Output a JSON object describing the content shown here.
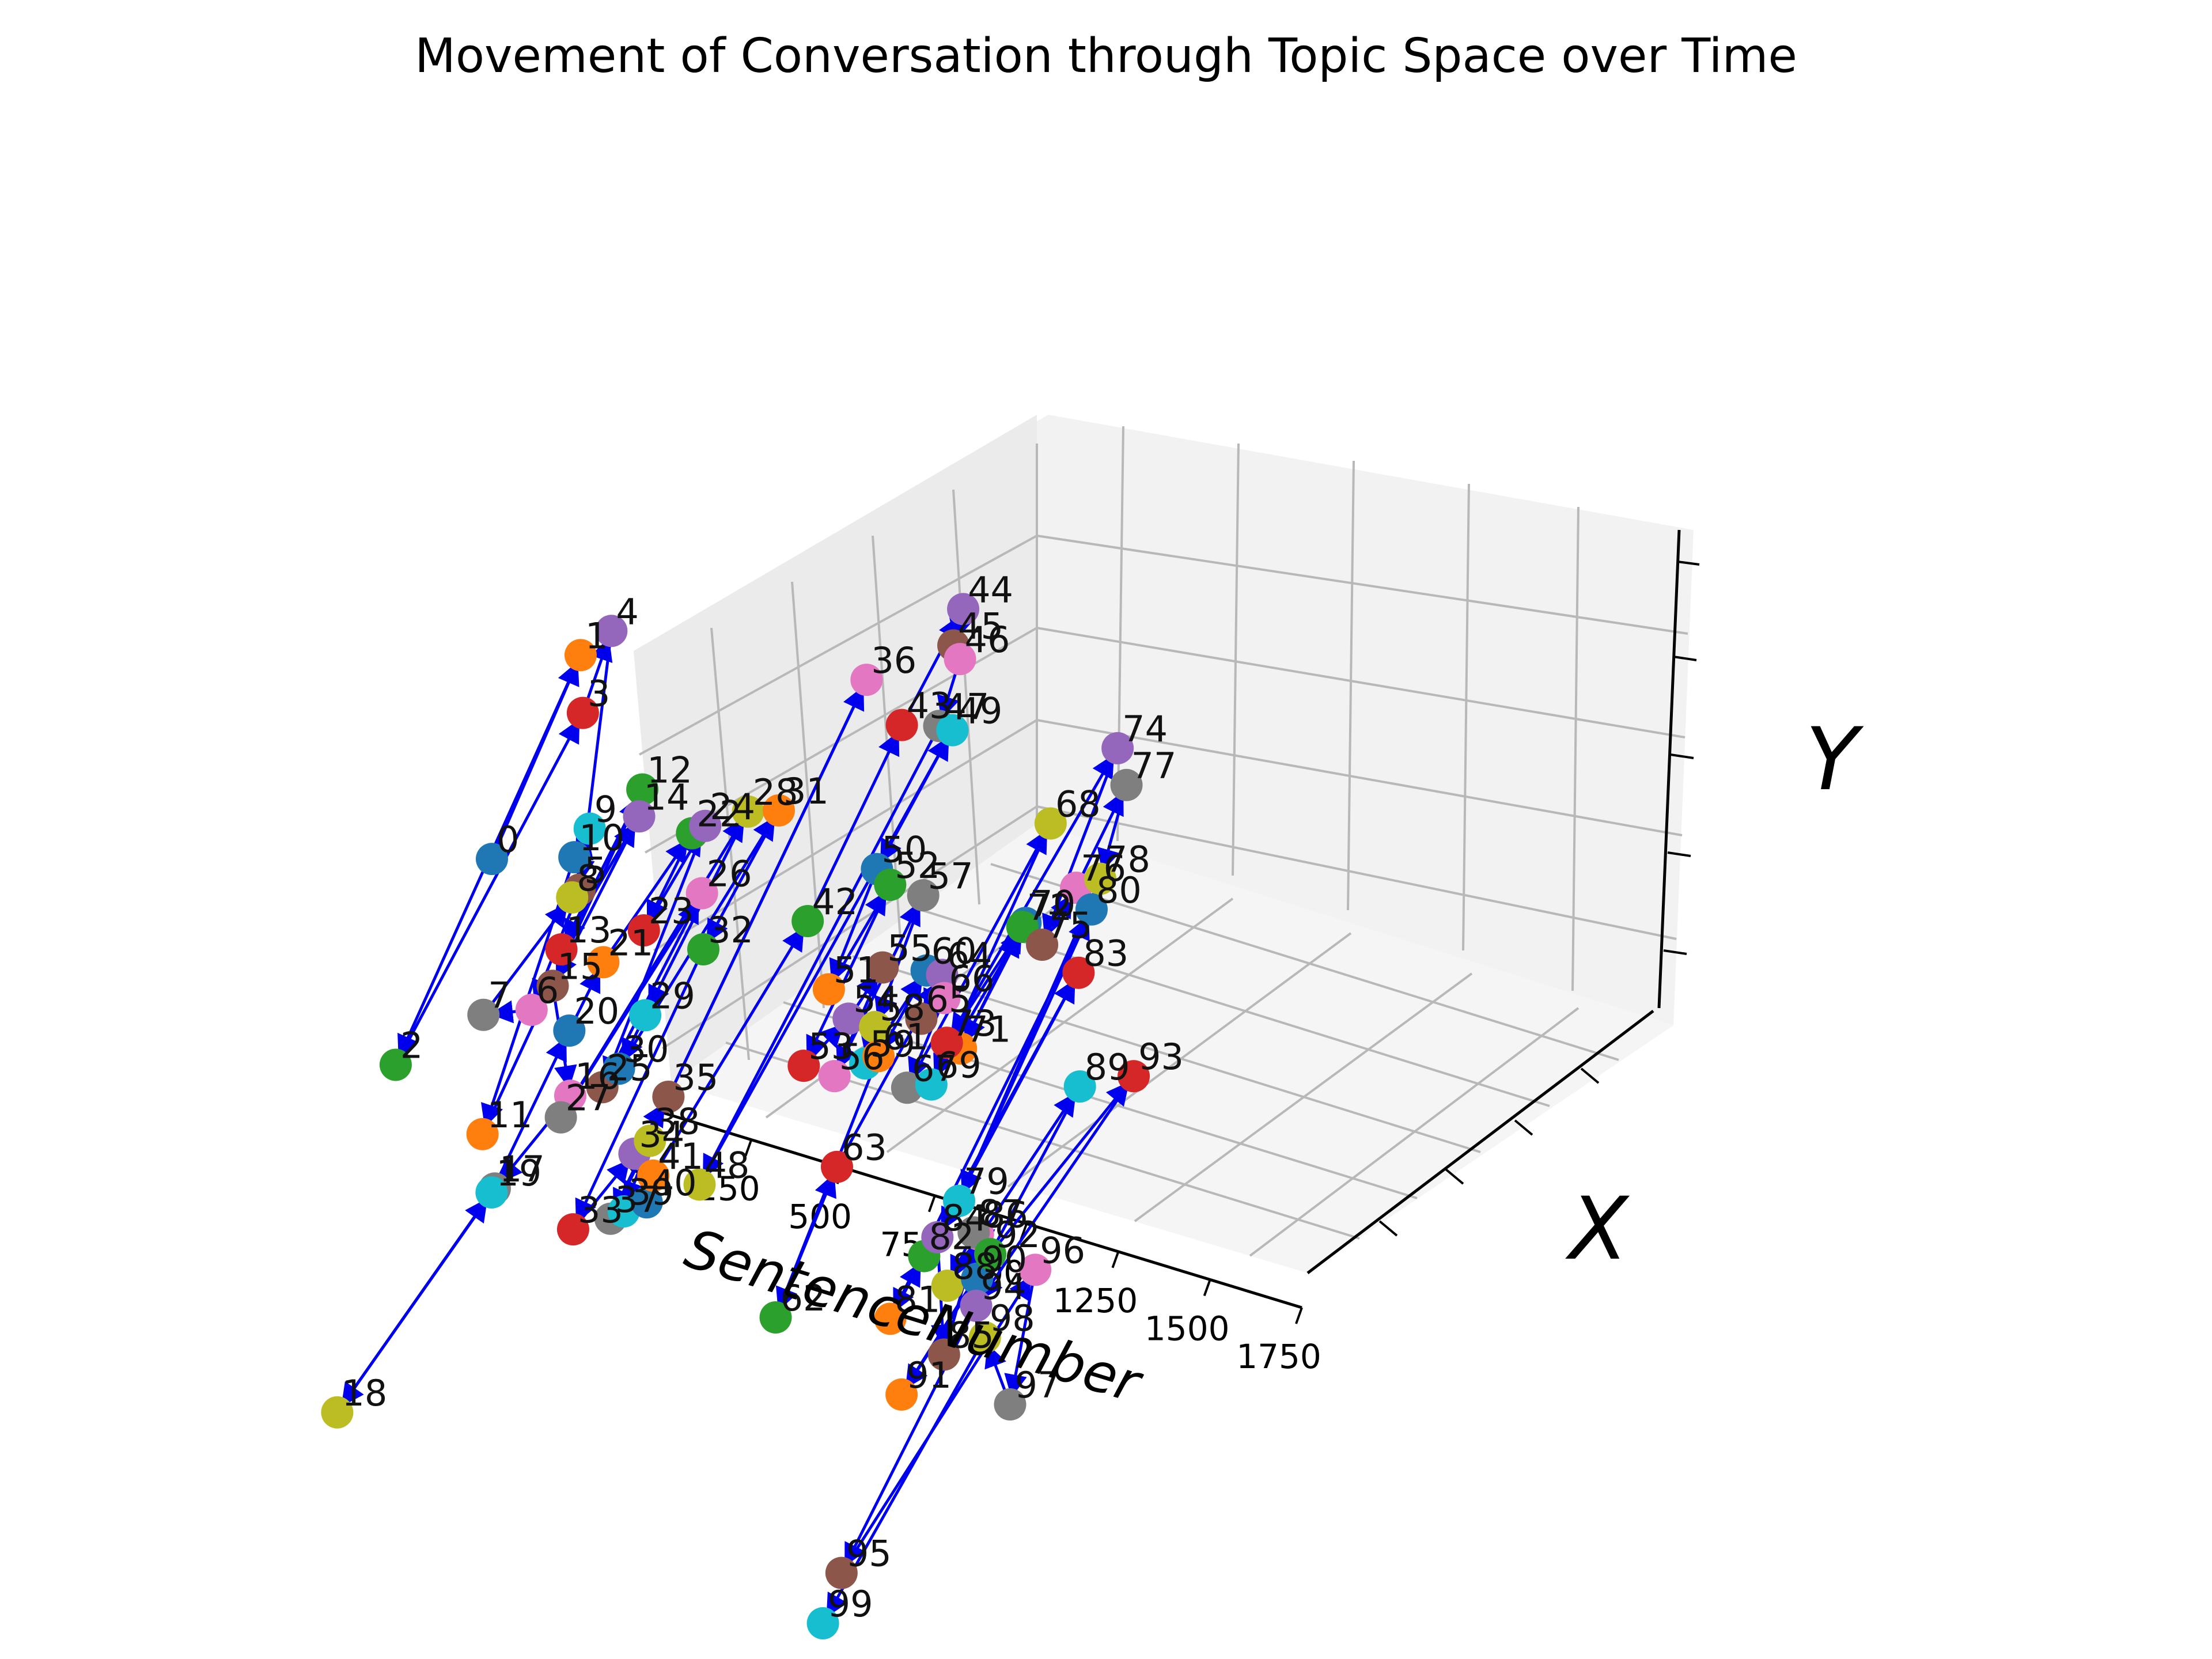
{
  "chart_data": {
    "type": "scatter",
    "title": "Movement of Conversation through Topic Space over Time",
    "xlabel": "SentenceNumber",
    "ylabel": "X",
    "zlabel": "Y",
    "x_ticks": [
      "0",
      "250",
      "500",
      "750",
      "1000",
      "1250",
      "1500",
      "1750"
    ],
    "xlim": [
      0,
      1750
    ],
    "grid": true,
    "connected_sequence": true,
    "arrow_color": "#0000ee",
    "point_colors": [
      "#1f77b4",
      "#ff7f0e",
      "#2ca02c",
      "#d62728",
      "#9467bd",
      "#8c564b",
      "#e377c2",
      "#7f7f7f",
      "#bcbd22",
      "#17becf"
    ],
    "points": [
      {
        "label": "0",
        "x": 18,
        "y": 0.35,
        "z": 0.62
      },
      {
        "label": "1",
        "x": 36,
        "y": 0.2,
        "z": 0.88
      },
      {
        "label": "2",
        "x": 54,
        "y": 0.55,
        "z": 0.4
      },
      {
        "label": "3",
        "x": 72,
        "y": 0.22,
        "z": 0.8
      },
      {
        "label": "4",
        "x": 90,
        "y": 0.18,
        "z": 0.92
      },
      {
        "label": "5",
        "x": 108,
        "y": 0.25,
        "z": 0.52
      },
      {
        "label": "6",
        "x": 126,
        "y": 0.35,
        "z": 0.38
      },
      {
        "label": "7",
        "x": 144,
        "y": 0.45,
        "z": 0.44
      },
      {
        "label": "8",
        "x": 162,
        "y": 0.3,
        "z": 0.55
      },
      {
        "label": "9",
        "x": 180,
        "y": 0.28,
        "z": 0.66
      },
      {
        "label": "10",
        "x": 198,
        "y": 0.32,
        "z": 0.64
      },
      {
        "label": "11",
        "x": 216,
        "y": 0.5,
        "z": 0.28
      },
      {
        "label": "12",
        "x": 234,
        "y": 0.22,
        "z": 0.7
      },
      {
        "label": "13",
        "x": 252,
        "y": 0.38,
        "z": 0.53
      },
      {
        "label": "14",
        "x": 270,
        "y": 0.25,
        "z": 0.68
      },
      {
        "label": "15",
        "x": 288,
        "y": 0.42,
        "z": 0.5
      },
      {
        "label": "16",
        "x": 306,
        "y": 0.4,
        "z": 0.3
      },
      {
        "label": "17",
        "x": 324,
        "y": 0.55,
        "z": 0.24
      },
      {
        "label": "18",
        "x": 342,
        "y": 0.85,
        "z": 0.05
      },
      {
        "label": "19",
        "x": 360,
        "y": 0.58,
        "z": 0.26
      },
      {
        "label": "20",
        "x": 378,
        "y": 0.45,
        "z": 0.46
      },
      {
        "label": "21",
        "x": 396,
        "y": 0.4,
        "z": 0.55
      },
      {
        "label": "22",
        "x": 414,
        "y": 0.25,
        "z": 0.68
      },
      {
        "label": "23",
        "x": 432,
        "y": 0.35,
        "z": 0.58
      },
      {
        "label": "24",
        "x": 450,
        "y": 0.25,
        "z": 0.7
      },
      {
        "label": "25",
        "x": 468,
        "y": 0.45,
        "z": 0.38
      },
      {
        "label": "26",
        "x": 486,
        "y": 0.28,
        "z": 0.61
      },
      {
        "label": "27",
        "x": 504,
        "y": 0.55,
        "z": 0.4
      },
      {
        "label": "28",
        "x": 522,
        "y": 0.22,
        "z": 0.72
      },
      {
        "label": "29",
        "x": 540,
        "y": 0.42,
        "z": 0.5
      },
      {
        "label": "30",
        "x": 558,
        "y": 0.48,
        "z": 0.45
      },
      {
        "label": "31",
        "x": 576,
        "y": 0.2,
        "z": 0.72
      },
      {
        "label": "32",
        "x": 594,
        "y": 0.35,
        "z": 0.58
      },
      {
        "label": "33",
        "x": 612,
        "y": 0.6,
        "z": 0.26
      },
      {
        "label": "34",
        "x": 630,
        "y": 0.5,
        "z": 0.33
      },
      {
        "label": "35",
        "x": 648,
        "y": 0.45,
        "z": 0.4
      },
      {
        "label": "36",
        "x": 666,
        "y": 0.1,
        "z": 0.9
      },
      {
        "label": "37",
        "x": 684,
        "y": 0.58,
        "z": 0.28
      },
      {
        "label": "38",
        "x": 702,
        "y": 0.52,
        "z": 0.38
      },
      {
        "label": "39",
        "x": 720,
        "y": 0.58,
        "z": 0.3
      },
      {
        "label": "40",
        "x": 738,
        "y": 0.55,
        "z": 0.3
      },
      {
        "label": "41",
        "x": 756,
        "y": 0.55,
        "z": 0.35
      },
      {
        "label": "42",
        "x": 774,
        "y": 0.28,
        "z": 0.62
      },
      {
        "label": "43",
        "x": 792,
        "y": 0.12,
        "z": 0.86
      },
      {
        "label": "44",
        "x": 810,
        "y": 0.02,
        "z": 1.0
      },
      {
        "label": "45",
        "x": 828,
        "y": 0.05,
        "z": 0.96
      },
      {
        "label": "46",
        "x": 846,
        "y": 0.05,
        "z": 0.94
      },
      {
        "label": "47",
        "x": 864,
        "y": 0.1,
        "z": 0.86
      },
      {
        "label": "48",
        "x": 882,
        "y": 0.55,
        "z": 0.36
      },
      {
        "label": "49",
        "x": 900,
        "y": 0.1,
        "z": 0.86
      },
      {
        "label": "50",
        "x": 918,
        "y": 0.25,
        "z": 0.72
      },
      {
        "label": "51",
        "x": 936,
        "y": 0.35,
        "z": 0.58
      },
      {
        "label": "52",
        "x": 954,
        "y": 0.25,
        "z": 0.7
      },
      {
        "label": "53",
        "x": 972,
        "y": 0.42,
        "z": 0.5
      },
      {
        "label": "54",
        "x": 990,
        "y": 0.35,
        "z": 0.54
      },
      {
        "label": "55",
        "x": 1008,
        "y": 0.3,
        "z": 0.6
      },
      {
        "label": "56",
        "x": 1026,
        "y": 0.4,
        "z": 0.48
      },
      {
        "label": "57",
        "x": 1044,
        "y": 0.25,
        "z": 0.7
      },
      {
        "label": "58",
        "x": 1062,
        "y": 0.35,
        "z": 0.54
      },
      {
        "label": "59",
        "x": 1080,
        "y": 0.38,
        "z": 0.5
      },
      {
        "label": "60",
        "x": 1098,
        "y": 0.28,
        "z": 0.6
      },
      {
        "label": "61",
        "x": 1116,
        "y": 0.38,
        "z": 0.52
      },
      {
        "label": "62",
        "x": 1134,
        "y": 0.58,
        "z": 0.2
      },
      {
        "label": "63",
        "x": 1152,
        "y": 0.48,
        "z": 0.4
      },
      {
        "label": "64",
        "x": 1170,
        "y": 0.3,
        "z": 0.62
      },
      {
        "label": "65",
        "x": 1188,
        "y": 0.35,
        "z": 0.58
      },
      {
        "label": "66",
        "x": 1206,
        "y": 0.32,
        "z": 0.6
      },
      {
        "label": "67",
        "x": 1224,
        "y": 0.4,
        "z": 0.5
      },
      {
        "label": "68",
        "x": 1242,
        "y": 0.15,
        "z": 0.8
      },
      {
        "label": "69",
        "x": 1260,
        "y": 0.38,
        "z": 0.5
      },
      {
        "label": "70",
        "x": 1278,
        "y": 0.22,
        "z": 0.68
      },
      {
        "label": "71",
        "x": 1296,
        "y": 0.35,
        "z": 0.55
      },
      {
        "label": "72",
        "x": 1314,
        "y": 0.25,
        "z": 0.7
      },
      {
        "label": "73",
        "x": 1332,
        "y": 0.4,
        "z": 0.6
      },
      {
        "label": "74",
        "x": 1350,
        "y": 0.1,
        "z": 0.92
      },
      {
        "label": "75",
        "x": 1368,
        "y": 0.25,
        "z": 0.68
      },
      {
        "label": "76",
        "x": 1386,
        "y": 0.2,
        "z": 0.75
      },
      {
        "label": "77",
        "x": 1404,
        "y": 0.12,
        "z": 0.88
      },
      {
        "label": "78",
        "x": 1422,
        "y": 0.18,
        "z": 0.76
      },
      {
        "label": "79",
        "x": 1440,
        "y": 0.45,
        "z": 0.38
      },
      {
        "label": "80",
        "x": 1458,
        "y": 0.22,
        "z": 0.74
      },
      {
        "label": "81",
        "x": 1476,
        "y": 0.6,
        "z": 0.28
      },
      {
        "label": "82",
        "x": 1494,
        "y": 0.55,
        "z": 0.36
      },
      {
        "label": "83",
        "x": 1512,
        "y": 0.28,
        "z": 0.68
      },
      {
        "label": "84",
        "x": 1530,
        "y": 0.55,
        "z": 0.4
      },
      {
        "label": "85",
        "x": 1548,
        "y": 0.55,
        "z": 0.2
      },
      {
        "label": "86",
        "x": 1566,
        "y": 0.5,
        "z": 0.38
      },
      {
        "label": "87",
        "x": 1584,
        "y": 0.52,
        "z": 0.4
      },
      {
        "label": "88",
        "x": 1602,
        "y": 0.58,
        "z": 0.35
      },
      {
        "label": "89",
        "x": 1620,
        "y": 0.35,
        "z": 0.55
      },
      {
        "label": "90",
        "x": 1638,
        "y": 0.55,
        "z": 0.35
      },
      {
        "label": "91",
        "x": 1656,
        "y": 0.7,
        "z": 0.25
      },
      {
        "label": "92",
        "x": 1674,
        "y": 0.55,
        "z": 0.4
      },
      {
        "label": "93",
        "x": 1692,
        "y": 0.3,
        "z": 0.55
      },
      {
        "label": "94",
        "x": 1710,
        "y": 0.6,
        "z": 0.35
      },
      {
        "label": "95",
        "x": 1716,
        "y": 0.85,
        "z": 0.05
      },
      {
        "label": "96",
        "x": 1722,
        "y": 0.5,
        "z": 0.35
      },
      {
        "label": "97",
        "x": 1728,
        "y": 0.55,
        "z": 0.15
      },
      {
        "label": "98",
        "x": 1734,
        "y": 0.6,
        "z": 0.3
      },
      {
        "label": "99",
        "x": 1740,
        "y": 0.9,
        "z": 0.0
      }
    ]
  }
}
